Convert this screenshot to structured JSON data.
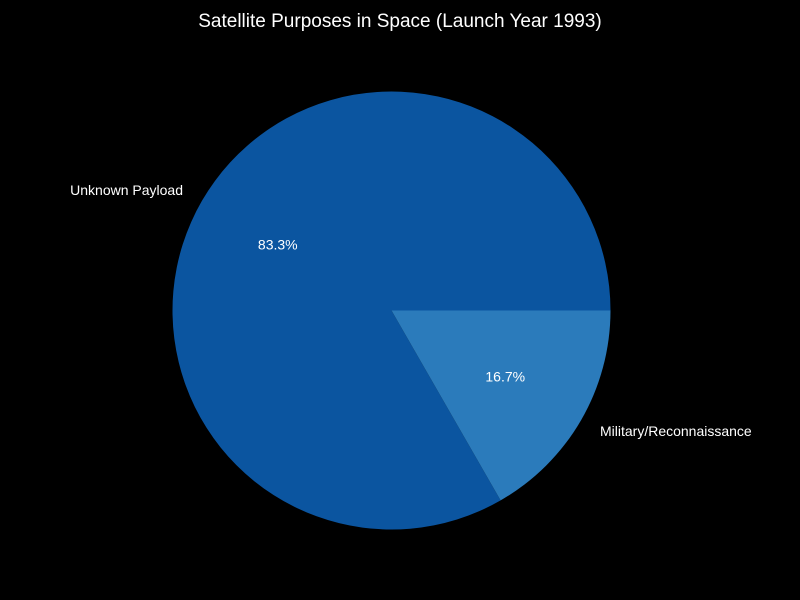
{
  "chart_data": {
    "type": "pie",
    "title": "Satellite Purposes in Space (Launch Year 1993)",
    "slices": [
      {
        "label": "Unknown Payload",
        "value": 83.3,
        "pct_label": "83.3%",
        "color": "#0b55a0"
      },
      {
        "label": "Military/Reconnaissance",
        "value": 16.7,
        "pct_label": "16.7%",
        "color": "#2b7bbb"
      }
    ],
    "start_angle_deg": 0,
    "direction": "counterclockwise",
    "background": "#000000"
  }
}
